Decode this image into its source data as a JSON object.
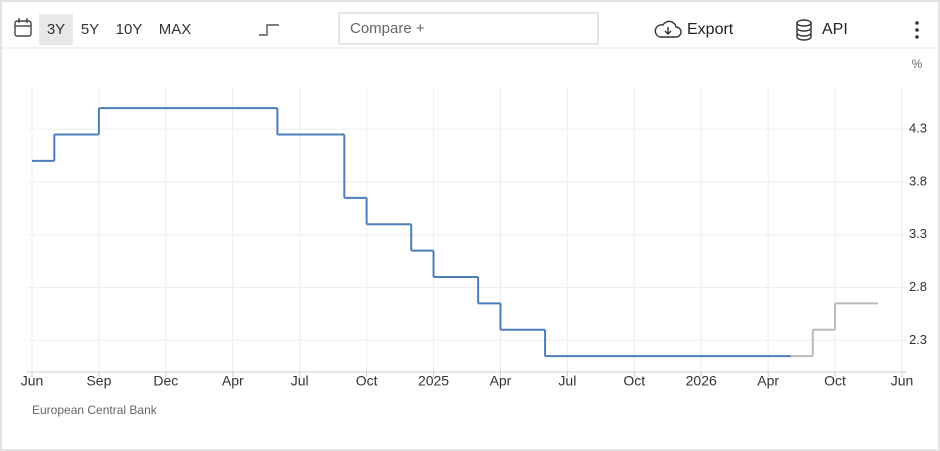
{
  "toolbar": {
    "ranges": [
      "3Y",
      "5Y",
      "10Y",
      "MAX"
    ],
    "compare": "Compare +",
    "export": "Export",
    "api": "API"
  },
  "chart_data": {
    "type": "line",
    "step": true,
    "ylabel": "%",
    "source": "European Central Bank",
    "series": [
      {
        "color": "#4a7ebb",
        "x": [
          "2023-06",
          "2023-07",
          "2023-09",
          "2024-06",
          "2024-09",
          "2024-10",
          "2024-12",
          "2025-01",
          "2025-03",
          "2025-04",
          "2025-06",
          "2026-06"
        ],
        "values": [
          4.0,
          4.25,
          4.5,
          4.25,
          3.65,
          3.4,
          3.15,
          2.9,
          2.65,
          2.4,
          2.15,
          2.15
        ]
      },
      {
        "color": "#bbbbbb",
        "x": [
          "2026-06",
          "2026-08",
          "2026-10",
          "2027-03"
        ],
        "values": [
          2.15,
          2.4,
          2.65,
          2.65
        ]
      }
    ],
    "xlim": [
      "2023-06",
      "2027-06"
    ],
    "xticks": [
      {
        "value": "2023-06",
        "label": "Jun"
      },
      {
        "value": "2023-09",
        "label": "Sep"
      },
      {
        "value": "2023-12",
        "label": "Dec"
      },
      {
        "value": "2024-04",
        "label": "Apr"
      },
      {
        "value": "2024-07",
        "label": "Jul"
      },
      {
        "value": "2024-10",
        "label": "Oct"
      },
      {
        "value": "2025-01",
        "label": "2025"
      },
      {
        "value": "2025-04",
        "label": "Apr"
      },
      {
        "value": "2025-07",
        "label": "Jul"
      },
      {
        "value": "2025-10",
        "label": "Oct"
      },
      {
        "value": "2026-01",
        "label": "2026"
      },
      {
        "value": "2026-04",
        "label": "Apr"
      },
      {
        "value": "2026-10",
        "label": "Oct"
      },
      {
        "value": "2027-06",
        "label": "Jun"
      }
    ],
    "ylim": [
      2.0,
      4.7
    ],
    "yticks": [
      2.3,
      2.8,
      3.3,
      3.8,
      4.3
    ],
    "grid": true
  }
}
